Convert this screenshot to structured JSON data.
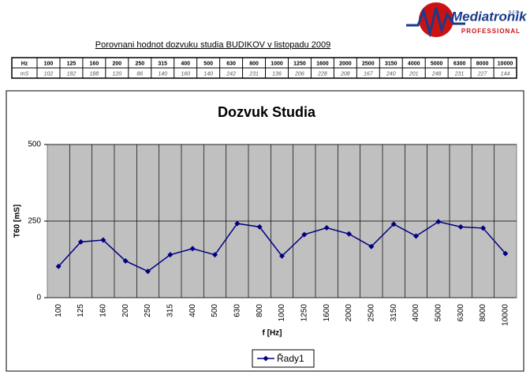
{
  "logo": {
    "name": "Mediatronik",
    "suffix": "s.r.o.",
    "tagline": "PROFESSIONAL"
  },
  "header": {
    "title": "Porovnani hodnot dozvuku studia BUDIKOV v listopadu 2009"
  },
  "table": {
    "row_labels": [
      "Hz",
      "mS"
    ]
  },
  "chart_data": {
    "type": "line",
    "title": "Dozvuk Studia",
    "x_label": "f [Hz]",
    "y_label": "T60 [mS]",
    "categories": [
      "100",
      "125",
      "160",
      "200",
      "250",
      "315",
      "400",
      "500",
      "630",
      "800",
      "1000",
      "1250",
      "1600",
      "2000",
      "2500",
      "3150",
      "4000",
      "5000",
      "6300",
      "8000",
      "10000"
    ],
    "series": [
      {
        "name": "Řady1",
        "color": "#000080",
        "values": [
          102,
          182,
          188,
          120,
          86,
          140,
          160,
          140,
          242,
          231,
          136,
          206,
          228,
          208,
          167,
          240,
          201,
          248,
          231,
          227,
          144
        ]
      }
    ],
    "ylim": [
      0,
      500
    ],
    "yticks": [
      0,
      250,
      500
    ],
    "grid": true,
    "legend": "bottom"
  }
}
